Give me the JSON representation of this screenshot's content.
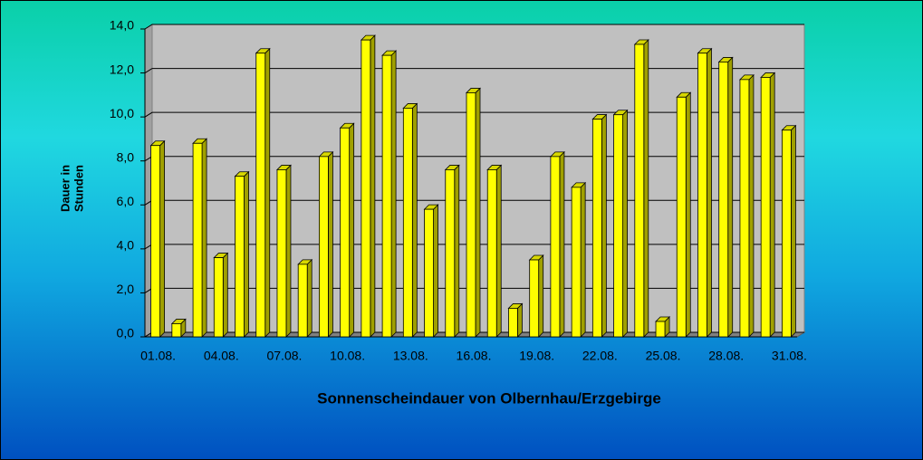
{
  "chart_data": {
    "type": "bar3d",
    "title": "Sonnenscheindauer von Olbernhau/Erzgebirge",
    "y_label": [
      "Dauer in",
      "Stunden"
    ],
    "categories": [
      "01.08.",
      null,
      null,
      "04.08.",
      null,
      null,
      "07.08.",
      null,
      null,
      "10.08.",
      null,
      null,
      "13.08.",
      null,
      null,
      "16.08.",
      null,
      null,
      "19.08.",
      null,
      null,
      "22.08.",
      null,
      null,
      "25.08.",
      null,
      null,
      "28.08.",
      null,
      null,
      "31.08."
    ],
    "values": [
      8.7,
      0.6,
      8.8,
      3.6,
      7.3,
      12.9,
      7.6,
      3.3,
      8.2,
      9.5,
      13.5,
      12.8,
      10.4,
      5.8,
      7.6,
      11.1,
      7.6,
      1.3,
      3.5,
      8.2,
      6.8,
      9.9,
      10.1,
      13.3,
      0.7,
      10.9,
      12.9,
      12.5,
      11.7,
      11.8,
      9.4
    ],
    "color": "#ffff00",
    "ylim": [
      0,
      14
    ],
    "yticks": [
      {
        "value": 0,
        "label": "0,0"
      },
      {
        "value": 2,
        "label": "2,0"
      },
      {
        "value": 4,
        "label": "4,0"
      },
      {
        "value": 6,
        "label": "6,0"
      },
      {
        "value": 8,
        "label": "8,0"
      },
      {
        "value": 10,
        "label": "10,0"
      },
      {
        "value": 12,
        "label": "12,0"
      },
      {
        "value": 14,
        "label": "14,0"
      }
    ],
    "grid": true
  }
}
